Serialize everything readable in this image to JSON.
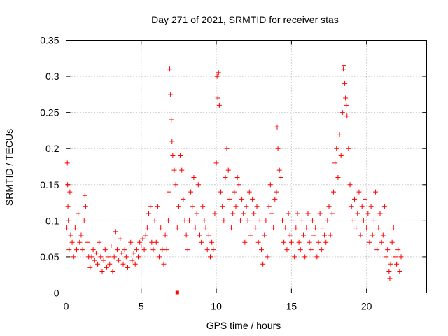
{
  "chart_data": {
    "type": "scatter",
    "title": "Day 271 of 2021, SRMTID for receiver stas",
    "xlabel": "GPS time / hours",
    "ylabel": "SRMTID / TECUs",
    "xlim": [
      0,
      24
    ],
    "ylim": [
      0,
      0.35
    ],
    "x_ticks": [
      0,
      5,
      10,
      15,
      20
    ],
    "x_tick_labels": [
      "0",
      "5",
      "10",
      "15",
      "20"
    ],
    "y_ticks": [
      0,
      0.05,
      0.1,
      0.15,
      0.2,
      0.25,
      0.3,
      0.35
    ],
    "y_tick_labels": [
      "0",
      "0.05",
      "0.1",
      "0.15",
      "0.2",
      "0.25",
      "0.3",
      "0.35"
    ],
    "grid": true,
    "marker": "+",
    "color": "#ff0000",
    "series": [
      {
        "name": "stas",
        "points": [
          [
            0.05,
            0.09
          ],
          [
            0.08,
            0.18
          ],
          [
            0.1,
            0.15
          ],
          [
            0.12,
            0.12
          ],
          [
            0.15,
            0.1
          ],
          [
            0.2,
            0.06
          ],
          [
            0.25,
            0.14
          ],
          [
            0.3,
            0.08
          ],
          [
            0.4,
            0.07
          ],
          [
            0.5,
            0.05
          ],
          [
            0.6,
            0.09
          ],
          [
            0.7,
            0.06
          ],
          [
            0.8,
            0.11
          ],
          [
            0.9,
            0.07
          ],
          [
            1.0,
            0.08
          ],
          [
            1.1,
            0.06
          ],
          [
            1.2,
            0.1
          ],
          [
            1.25,
            0.135
          ],
          [
            1.3,
            0.12
          ],
          [
            1.4,
            0.07
          ],
          [
            1.5,
            0.05
          ],
          [
            1.6,
            0.035
          ],
          [
            1.7,
            0.05
          ],
          [
            1.8,
            0.06
          ],
          [
            1.9,
            0.045
          ],
          [
            2.0,
            0.055
          ],
          [
            2.1,
            0.04
          ],
          [
            2.2,
            0.07
          ],
          [
            2.3,
            0.05
          ],
          [
            2.4,
            0.03
          ],
          [
            2.5,
            0.045
          ],
          [
            2.6,
            0.06
          ],
          [
            2.7,
            0.035
          ],
          [
            2.8,
            0.05
          ],
          [
            2.9,
            0.04
          ],
          [
            3.0,
            0.065
          ],
          [
            3.1,
            0.03
          ],
          [
            3.2,
            0.05
          ],
          [
            3.3,
            0.085
          ],
          [
            3.4,
            0.06
          ],
          [
            3.5,
            0.045
          ],
          [
            3.6,
            0.075
          ],
          [
            3.7,
            0.055
          ],
          [
            3.8,
            0.04
          ],
          [
            3.9,
            0.06
          ],
          [
            4.0,
            0.05
          ],
          [
            4.1,
            0.035
          ],
          [
            4.2,
            0.065
          ],
          [
            4.3,
            0.07
          ],
          [
            4.4,
            0.045
          ],
          [
            4.5,
            0.055
          ],
          [
            4.6,
            0.04
          ],
          [
            4.7,
            0.06
          ],
          [
            4.8,
            0.05
          ],
          [
            4.9,
            0.07
          ],
          [
            5.0,
            0.065
          ],
          [
            5.1,
            0.075
          ],
          [
            5.2,
            0.06
          ],
          [
            5.3,
            0.08
          ],
          [
            5.4,
            0.09
          ],
          [
            5.5,
            0.11
          ],
          [
            5.6,
            0.12
          ],
          [
            5.7,
            0.07
          ],
          [
            5.8,
            0.06
          ],
          [
            5.9,
            0.1
          ],
          [
            6.0,
            0.07
          ],
          [
            6.1,
            0.12
          ],
          [
            6.2,
            0.05
          ],
          [
            6.3,
            0.09
          ],
          [
            6.4,
            0.06
          ],
          [
            6.5,
            0.04
          ],
          [
            6.6,
            0.08
          ],
          [
            6.7,
            0.06
          ],
          [
            6.8,
            0.1
          ],
          [
            6.85,
            0.14
          ],
          [
            6.9,
            0.31
          ],
          [
            6.95,
            0.275
          ],
          [
            7.0,
            0.24
          ],
          [
            7.05,
            0.21
          ],
          [
            7.1,
            0.19
          ],
          [
            7.2,
            0.17
          ],
          [
            7.3,
            0.15
          ],
          [
            7.4,
            0.09
          ],
          [
            7.5,
            0.12
          ],
          [
            7.6,
            0.19
          ],
          [
            7.7,
            0.17
          ],
          [
            7.8,
            0.13
          ],
          [
            7.9,
            0.1
          ],
          [
            8.0,
            0.08
          ],
          [
            8.1,
            0.06
          ],
          [
            8.2,
            0.1
          ],
          [
            8.3,
            0.14
          ],
          [
            8.4,
            0.12
          ],
          [
            8.5,
            0.16
          ],
          [
            8.6,
            0.09
          ],
          [
            8.7,
            0.11
          ],
          [
            8.8,
            0.15
          ],
          [
            8.9,
            0.08
          ],
          [
            9.0,
            0.07
          ],
          [
            9.1,
            0.12
          ],
          [
            9.2,
            0.1
          ],
          [
            9.3,
            0.09
          ],
          [
            9.4,
            0.06
          ],
          [
            9.5,
            0.08
          ],
          [
            9.6,
            0.05
          ],
          [
            9.7,
            0.07
          ],
          [
            9.8,
            0.06
          ],
          [
            9.9,
            0.11
          ],
          [
            10.0,
            0.18
          ],
          [
            10.05,
            0.3
          ],
          [
            10.1,
            0.27
          ],
          [
            10.15,
            0.305
          ],
          [
            10.2,
            0.26
          ],
          [
            10.3,
            0.14
          ],
          [
            10.4,
            0.12
          ],
          [
            10.5,
            0.1
          ],
          [
            10.6,
            0.16
          ],
          [
            10.7,
            0.2
          ],
          [
            10.8,
            0.17
          ],
          [
            10.9,
            0.13
          ],
          [
            11.0,
            0.09
          ],
          [
            11.1,
            0.11
          ],
          [
            11.2,
            0.14
          ],
          [
            11.3,
            0.12
          ],
          [
            11.4,
            0.16
          ],
          [
            11.5,
            0.15
          ],
          [
            11.6,
            0.1
          ],
          [
            11.7,
            0.13
          ],
          [
            11.8,
            0.11
          ],
          [
            11.9,
            0.07
          ],
          [
            12.0,
            0.12
          ],
          [
            12.1,
            0.1
          ],
          [
            12.2,
            0.14
          ],
          [
            12.3,
            0.08
          ],
          [
            12.4,
            0.13
          ],
          [
            12.5,
            0.11
          ],
          [
            12.6,
            0.09
          ],
          [
            12.7,
            0.12
          ],
          [
            12.8,
            0.07
          ],
          [
            12.9,
            0.1
          ],
          [
            13.0,
            0.06
          ],
          [
            13.1,
            0.04
          ],
          [
            13.2,
            0.08
          ],
          [
            13.3,
            0.1
          ],
          [
            13.4,
            0.05
          ],
          [
            13.5,
            0.12
          ],
          [
            13.6,
            0.15
          ],
          [
            13.7,
            0.11
          ],
          [
            13.8,
            0.09
          ],
          [
            13.9,
            0.13
          ],
          [
            14.0,
            0.14
          ],
          [
            14.05,
            0.23
          ],
          [
            14.1,
            0.2
          ],
          [
            14.2,
            0.17
          ],
          [
            14.3,
            0.16
          ],
          [
            14.4,
            0.1
          ],
          [
            14.5,
            0.07
          ],
          [
            14.6,
            0.09
          ],
          [
            14.7,
            0.06
          ],
          [
            14.8,
            0.11
          ],
          [
            14.9,
            0.08
          ],
          [
            15.0,
            0.07
          ],
          [
            15.1,
            0.1
          ],
          [
            15.2,
            0.05
          ],
          [
            15.3,
            0.09
          ],
          [
            15.4,
            0.11
          ],
          [
            15.5,
            0.07
          ],
          [
            15.6,
            0.06
          ],
          [
            15.7,
            0.1
          ],
          [
            15.8,
            0.08
          ],
          [
            15.9,
            0.05
          ],
          [
            16.0,
            0.09
          ],
          [
            16.1,
            0.11
          ],
          [
            16.2,
            0.07
          ],
          [
            16.3,
            0.06
          ],
          [
            16.4,
            0.1
          ],
          [
            16.5,
            0.08
          ],
          [
            16.6,
            0.09
          ],
          [
            16.7,
            0.05
          ],
          [
            16.8,
            0.07
          ],
          [
            16.9,
            0.11
          ],
          [
            17.0,
            0.06
          ],
          [
            17.1,
            0.09
          ],
          [
            17.2,
            0.08
          ],
          [
            17.3,
            0.07
          ],
          [
            17.4,
            0.1
          ],
          [
            17.5,
            0.12
          ],
          [
            17.6,
            0.08
          ],
          [
            17.7,
            0.11
          ],
          [
            17.8,
            0.14
          ],
          [
            17.9,
            0.18
          ],
          [
            18.0,
            0.2
          ],
          [
            18.1,
            0.16
          ],
          [
            18.2,
            0.22
          ],
          [
            18.3,
            0.19
          ],
          [
            18.4,
            0.25
          ],
          [
            18.45,
            0.31
          ],
          [
            18.5,
            0.315
          ],
          [
            18.55,
            0.29
          ],
          [
            18.6,
            0.27
          ],
          [
            18.65,
            0.26
          ],
          [
            18.7,
            0.245
          ],
          [
            18.8,
            0.2
          ],
          [
            18.9,
            0.15
          ],
          [
            19.0,
            0.12
          ],
          [
            19.1,
            0.1
          ],
          [
            19.2,
            0.13
          ],
          [
            19.3,
            0.09
          ],
          [
            19.4,
            0.11
          ],
          [
            19.5,
            0.14
          ],
          [
            19.6,
            0.08
          ],
          [
            19.7,
            0.12
          ],
          [
            19.8,
            0.1
          ],
          [
            19.9,
            0.13
          ],
          [
            20.0,
            0.09
          ],
          [
            20.1,
            0.11
          ],
          [
            20.2,
            0.07
          ],
          [
            20.3,
            0.12
          ],
          [
            20.4,
            0.08
          ],
          [
            20.5,
            0.1
          ],
          [
            20.6,
            0.14
          ],
          [
            20.7,
            0.06
          ],
          [
            20.8,
            0.09
          ],
          [
            20.9,
            0.11
          ],
          [
            21.0,
            0.07
          ],
          [
            21.1,
            0.08
          ],
          [
            21.2,
            0.12
          ],
          [
            21.3,
            0.05
          ],
          [
            21.4,
            0.06
          ],
          [
            21.5,
            0.03
          ],
          [
            21.55,
            0.02
          ],
          [
            21.6,
            0.04
          ],
          [
            21.7,
            0.07
          ],
          [
            21.8,
            0.09
          ],
          [
            21.9,
            0.05
          ],
          [
            22.0,
            0.04
          ],
          [
            22.1,
            0.06
          ],
          [
            22.2,
            0.03
          ],
          [
            22.3,
            0.05
          ]
        ]
      }
    ],
    "marker_points": [
      [
        7.4,
        0.0
      ]
    ]
  }
}
